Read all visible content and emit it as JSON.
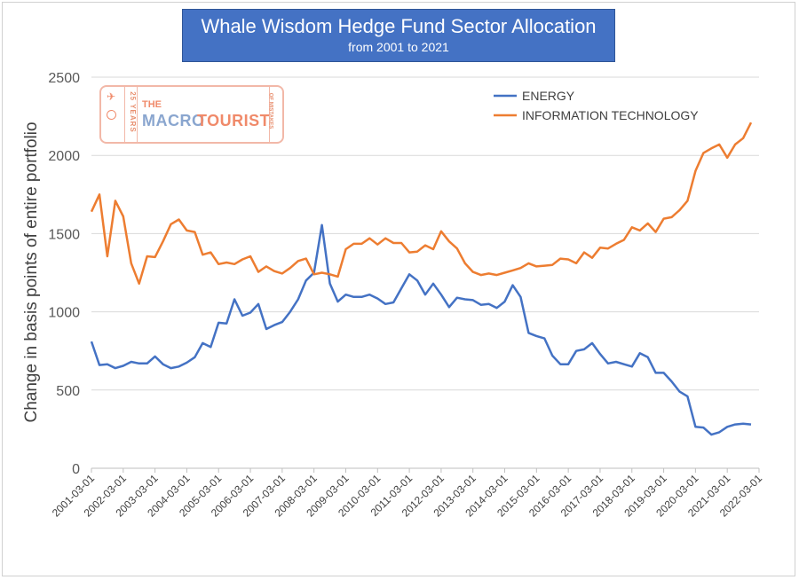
{
  "title": "Whale Wisdom Hedge Fund Sector Allocation",
  "subtitle": "from 2001 to 2021",
  "logo": {
    "the": "THE",
    "macro": "MACRO",
    "tourist": "TOURIST",
    "years": "25 YEARS",
    "mistakes": "OF MISTAKES"
  },
  "colors": {
    "energy": "#4472c4",
    "it": "#ed7d31",
    "title_bg": "#4472c4",
    "grid": "#d9d9d9"
  },
  "chart_data": {
    "type": "line",
    "title": "Whale Wisdom Hedge Fund Sector Allocation",
    "subtitle": "from 2001 to 2021",
    "ylabel": "Change in basis points of entire portfolio",
    "xlabel": "",
    "ylim": [
      0,
      2500
    ],
    "yticks": [
      0,
      500,
      1000,
      1500,
      2000,
      2500
    ],
    "grid": "horizontal",
    "legend_position": "top-right",
    "x_tick_labels": [
      "2001-03-01",
      "2002-03-01",
      "2003-03-01",
      "2004-03-01",
      "2005-03-01",
      "2006-03-01",
      "2007-03-01",
      "2008-03-01",
      "2009-03-01",
      "2010-03-01",
      "2011-03-01",
      "2012-03-01",
      "2013-03-01",
      "2014-03-01",
      "2015-03-01",
      "2016-03-01",
      "2017-03-01",
      "2018-03-01",
      "2019-03-01",
      "2020-03-01",
      "2021-03-01",
      "2022-03-01"
    ],
    "x_start": "2001-03-01",
    "x_step_months": 3,
    "series": [
      {
        "name": "ENERGY",
        "color": "#4472c4",
        "values": [
          810,
          660,
          665,
          640,
          655,
          680,
          670,
          670,
          715,
          665,
          640,
          650,
          675,
          710,
          800,
          775,
          930,
          925,
          1080,
          975,
          995,
          1050,
          890,
          915,
          935,
          1000,
          1080,
          1200,
          1250,
          1555,
          1180,
          1065,
          1110,
          1095,
          1095,
          1110,
          1085,
          1050,
          1060,
          1150,
          1240,
          1200,
          1110,
          1180,
          1110,
          1030,
          1090,
          1080,
          1075,
          1045,
          1050,
          1025,
          1065,
          1170,
          1095,
          865,
          845,
          830,
          720,
          665,
          665,
          750,
          760,
          800,
          730,
          670,
          680,
          665,
          650,
          735,
          710,
          610,
          610,
          555,
          490,
          460,
          265,
          260,
          215,
          230,
          265,
          280,
          285,
          280
        ]
      },
      {
        "name": "INFORMATION TECHNOLOGY",
        "color": "#ed7d31",
        "values": [
          1640,
          1750,
          1355,
          1710,
          1610,
          1310,
          1180,
          1355,
          1350,
          1450,
          1560,
          1590,
          1520,
          1510,
          1365,
          1380,
          1305,
          1315,
          1305,
          1335,
          1355,
          1255,
          1290,
          1260,
          1245,
          1280,
          1325,
          1340,
          1240,
          1250,
          1240,
          1225,
          1400,
          1435,
          1435,
          1470,
          1430,
          1470,
          1440,
          1440,
          1380,
          1385,
          1425,
          1400,
          1515,
          1450,
          1405,
          1310,
          1255,
          1235,
          1245,
          1235,
          1250,
          1265,
          1280,
          1310,
          1290,
          1295,
          1300,
          1340,
          1335,
          1310,
          1380,
          1345,
          1410,
          1405,
          1435,
          1460,
          1540,
          1520,
          1565,
          1510,
          1595,
          1605,
          1650,
          1710,
          1900,
          2015,
          2045,
          2070,
          1985,
          2070,
          2110,
          2210
        ]
      }
    ]
  }
}
